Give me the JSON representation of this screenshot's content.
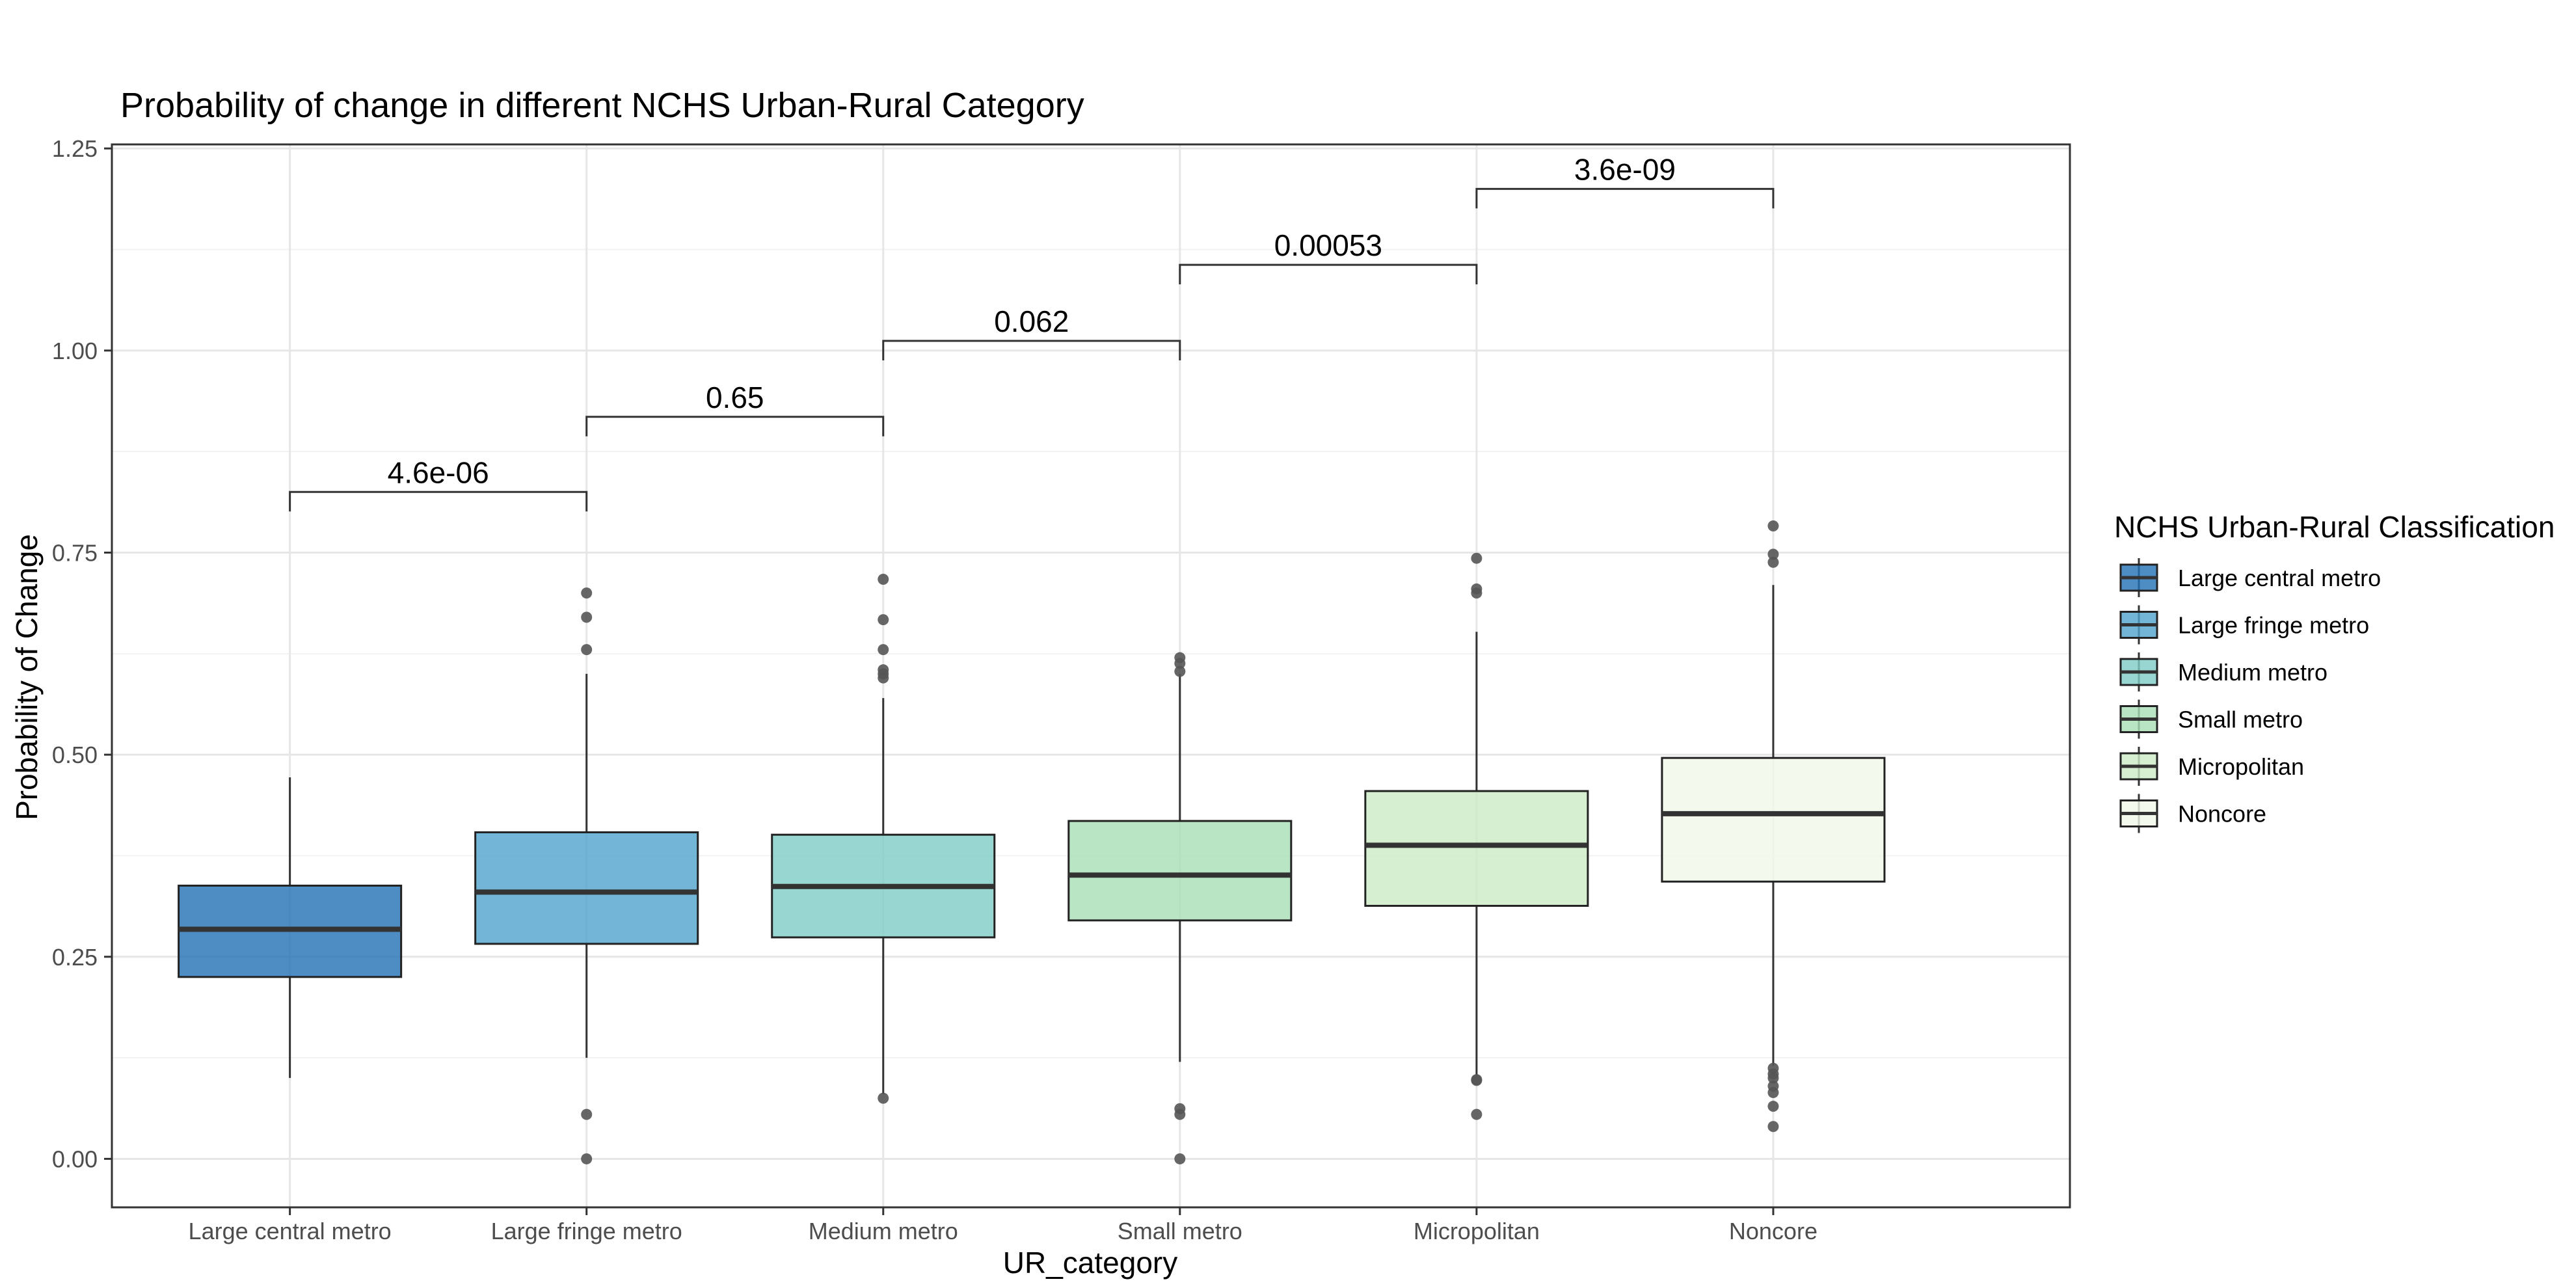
{
  "chart_data": {
    "type": "boxplot",
    "title": "Probability of change in different NCHS Urban-Rural Category",
    "xlabel": "UR_category",
    "ylabel": "Probability of Change",
    "ylim": [
      -0.06,
      1.255
    ],
    "yticks": [
      0.0,
      0.25,
      0.5,
      0.75,
      1.0,
      1.25
    ],
    "ytick_labels": [
      "0.00",
      "0.25",
      "0.50",
      "0.75",
      "1.00",
      "1.25"
    ],
    "grid": true,
    "legend": {
      "title": "NCHS Urban-Rural Classification",
      "position": "right"
    },
    "categories": [
      "Large central metro",
      "Large fringe metro",
      "Medium metro",
      "Small metro",
      "Micropolitan",
      "Noncore"
    ],
    "boxes": [
      {
        "name": "Large central metro",
        "color": "#2171b5",
        "whisker_low": 0.1,
        "q1": 0.225,
        "median": 0.284,
        "q3": 0.338,
        "whisker_high": 0.472,
        "outliers": []
      },
      {
        "name": "Large fringe metro",
        "color": "#4fa3cc",
        "whisker_low": 0.125,
        "q1": 0.266,
        "median": 0.33,
        "q3": 0.404,
        "whisker_high": 0.6,
        "outliers": [
          0.0,
          0.055,
          0.63,
          0.67,
          0.7
        ]
      },
      {
        "name": "Medium metro",
        "color": "#7ecdc5",
        "whisker_low": 0.08,
        "q1": 0.274,
        "median": 0.337,
        "q3": 0.401,
        "whisker_high": 0.57,
        "outliers": [
          0.075,
          0.595,
          0.6,
          0.605,
          0.63,
          0.667,
          0.717
        ]
      },
      {
        "name": "Small metro",
        "color": "#a8deb5",
        "whisker_low": 0.12,
        "q1": 0.295,
        "median": 0.351,
        "q3": 0.418,
        "whisker_high": 0.6,
        "outliers": [
          0.0,
          0.055,
          0.062,
          0.603,
          0.613,
          0.62
        ]
      },
      {
        "name": "Micropolitan",
        "color": "#ccebc5",
        "whisker_low": 0.1,
        "q1": 0.313,
        "median": 0.388,
        "q3": 0.455,
        "whisker_high": 0.652,
        "outliers": [
          0.055,
          0.097,
          0.098,
          0.7,
          0.705,
          0.743
        ]
      },
      {
        "name": "Noncore",
        "color": "#f0f9e8",
        "whisker_low": 0.115,
        "q1": 0.343,
        "median": 0.427,
        "q3": 0.496,
        "whisker_high": 0.71,
        "outliers": [
          0.04,
          0.065,
          0.082,
          0.09,
          0.1,
          0.105,
          0.112,
          0.738,
          0.748,
          0.783
        ]
      }
    ],
    "comparisons": [
      {
        "from": 0,
        "to": 1,
        "label": "4.6e-06",
        "y": 0.825
      },
      {
        "from": 1,
        "to": 2,
        "label": "0.65",
        "y": 0.918
      },
      {
        "from": 2,
        "to": 3,
        "label": "0.062",
        "y": 1.012
      },
      {
        "from": 3,
        "to": 4,
        "label": "0.00053",
        "y": 1.106
      },
      {
        "from": 4,
        "to": 5,
        "label": "3.6e-09",
        "y": 1.2
      }
    ]
  }
}
